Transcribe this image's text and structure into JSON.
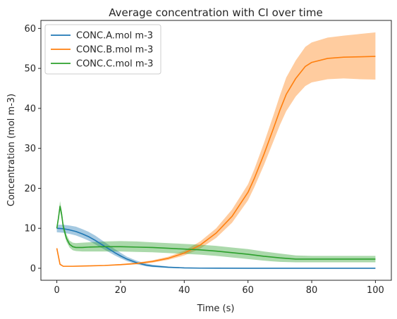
{
  "chart_data": {
    "type": "line",
    "title": "Average concentration with CI over time",
    "xlabel": "Time (s)",
    "ylabel": "Concentration (mol m-3)",
    "xlim": [
      -5,
      105
    ],
    "ylim": [
      -3,
      62
    ],
    "xticks": [
      0,
      20,
      40,
      60,
      80,
      100
    ],
    "yticks": [
      0,
      10,
      20,
      30,
      40,
      50,
      60
    ],
    "grid": false,
    "legend_position": "top-left",
    "series": [
      {
        "name": "CONC.A.mol m-3",
        "color": "#1f77b4",
        "x": [
          0,
          2,
          4,
          6,
          8,
          10,
          12,
          14,
          16,
          18,
          20,
          22,
          25,
          28,
          30,
          35,
          40,
          45,
          50,
          60,
          70,
          80,
          90,
          100
        ],
        "y": [
          10,
          9.9,
          9.6,
          9.2,
          8.6,
          7.9,
          7.0,
          6.0,
          5.0,
          4.0,
          3.1,
          2.3,
          1.4,
          0.8,
          0.55,
          0.25,
          0.1,
          0.04,
          0.02,
          0.01,
          0.01,
          0.01,
          0.01,
          0.01
        ],
        "lower": [
          9.0,
          8.9,
          8.6,
          8.2,
          7.6,
          6.9,
          6.0,
          5.1,
          4.2,
          3.3,
          2.5,
          1.8,
          1.0,
          0.5,
          0.3,
          0.1,
          0.03,
          0.0,
          0.0,
          0.0,
          0.0,
          0.0,
          0.0,
          0.0
        ],
        "upper": [
          10.9,
          10.9,
          10.7,
          10.4,
          9.8,
          9.1,
          8.2,
          7.1,
          6.0,
          4.9,
          3.9,
          2.9,
          1.9,
          1.2,
          0.9,
          0.45,
          0.2,
          0.1,
          0.05,
          0.03,
          0.03,
          0.03,
          0.03,
          0.03
        ]
      },
      {
        "name": "CONC.B.mol m-3",
        "color": "#ff7f0e",
        "x": [
          0,
          1,
          2,
          5,
          10,
          15,
          20,
          25,
          30,
          35,
          40,
          45,
          50,
          55,
          60,
          62,
          65,
          68,
          70,
          72,
          75,
          78,
          80,
          85,
          90,
          95,
          100
        ],
        "y": [
          5.0,
          1.0,
          0.5,
          0.5,
          0.6,
          0.7,
          0.9,
          1.2,
          1.7,
          2.5,
          3.8,
          5.8,
          8.8,
          13.0,
          19.0,
          22.5,
          28.5,
          35.0,
          39.5,
          43.5,
          47.5,
          50.5,
          51.5,
          52.5,
          52.8,
          52.9,
          53.0
        ],
        "lower": [
          4.8,
          0.8,
          0.4,
          0.4,
          0.5,
          0.6,
          0.75,
          1.0,
          1.4,
          2.1,
          3.2,
          4.9,
          7.6,
          11.4,
          17.0,
          20.3,
          25.8,
          31.8,
          35.8,
          39.3,
          43.0,
          45.6,
          46.5,
          47.3,
          47.5,
          47.3,
          47.2
        ],
        "upper": [
          5.2,
          1.2,
          0.6,
          0.6,
          0.7,
          0.8,
          1.05,
          1.4,
          2.0,
          2.9,
          4.4,
          6.7,
          10.0,
          14.7,
          21.0,
          24.8,
          31.3,
          38.3,
          43.2,
          47.7,
          52.0,
          55.4,
          56.5,
          57.7,
          58.2,
          58.6,
          59.0
        ]
      },
      {
        "name": "CONC.C.mol m-3",
        "color": "#2ca02c",
        "x": [
          0,
          0.5,
          1,
          1.5,
          2,
          3,
          4,
          5,
          6,
          8,
          10,
          15,
          20,
          25,
          30,
          35,
          40,
          45,
          50,
          55,
          60,
          65,
          70,
          75,
          80,
          85,
          90,
          95,
          100
        ],
        "y": [
          10,
          12.5,
          15.5,
          13.5,
          10.5,
          7.5,
          6.0,
          5.4,
          5.2,
          5.2,
          5.3,
          5.4,
          5.4,
          5.3,
          5.2,
          5.0,
          4.8,
          4.6,
          4.3,
          3.9,
          3.5,
          3.0,
          2.6,
          2.3,
          2.3,
          2.3,
          2.3,
          2.3,
          2.3
        ],
        "lower": [
          9.5,
          11.8,
          14.5,
          12.5,
          9.6,
          6.7,
          5.2,
          4.5,
          4.3,
          4.2,
          4.2,
          4.2,
          4.2,
          4.1,
          4.0,
          3.8,
          3.6,
          3.4,
          3.1,
          2.7,
          2.3,
          1.9,
          1.6,
          1.5,
          1.5,
          1.5,
          1.5,
          1.5,
          1.5
        ],
        "upper": [
          10.5,
          13.3,
          16.8,
          14.7,
          11.5,
          8.4,
          6.9,
          6.4,
          6.3,
          6.4,
          6.5,
          6.7,
          6.8,
          6.7,
          6.5,
          6.3,
          6.1,
          5.9,
          5.6,
          5.2,
          4.8,
          4.2,
          3.7,
          3.2,
          3.1,
          3.1,
          3.1,
          3.1,
          3.1
        ]
      }
    ]
  }
}
